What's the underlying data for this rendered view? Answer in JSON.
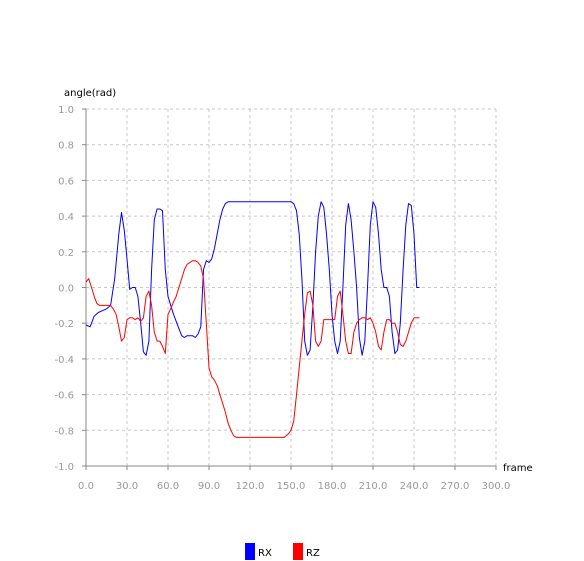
{
  "chart_data": {
    "type": "line",
    "xlabel": "frame",
    "ylabel": "angle(rad)",
    "xlim": [
      0,
      300
    ],
    "ylim": [
      -1.0,
      1.0
    ],
    "x_ticks": [
      "0.0",
      "30.0",
      "60.0",
      "90.0",
      "120.0",
      "150.0",
      "180.0",
      "210.0",
      "240.0",
      "270.0",
      "300.0"
    ],
    "y_ticks": [
      "-1.0",
      "-0.8",
      "-0.6",
      "-0.4",
      "-0.2",
      "0.0",
      "0.2",
      "0.4",
      "0.6",
      "0.8",
      "1.0"
    ],
    "grid": true,
    "legend_position": "bottom",
    "series": [
      {
        "name": "RX",
        "color": "#0000ff",
        "x": [
          0,
          3,
          6,
          9,
          12,
          15,
          18,
          21,
          24,
          26,
          28,
          30,
          32,
          34,
          36,
          38,
          40,
          42,
          44,
          46,
          48,
          50,
          52,
          54,
          56,
          58,
          60,
          62,
          64,
          66,
          68,
          70,
          72,
          74,
          76,
          78,
          80,
          82,
          84,
          86,
          88,
          90,
          92,
          94,
          96,
          98,
          100,
          102,
          104,
          106,
          108,
          110,
          112,
          114,
          116,
          118,
          120,
          125,
          130,
          135,
          140,
          145,
          148,
          150,
          152,
          154,
          156,
          158,
          160,
          162,
          164,
          166,
          168,
          170,
          172,
          174,
          176,
          178,
          180,
          182,
          184,
          186,
          188,
          190,
          192,
          194,
          196,
          198,
          200,
          202,
          204,
          206,
          208,
          210,
          212,
          214,
          216,
          218,
          220,
          222,
          224,
          226,
          228,
          230,
          232,
          234,
          236,
          238,
          240,
          242,
          244
        ],
        "y": [
          -0.21,
          -0.22,
          -0.16,
          -0.14,
          -0.13,
          -0.12,
          -0.1,
          0.05,
          0.3,
          0.42,
          0.32,
          0.16,
          -0.01,
          0.0,
          0.0,
          -0.05,
          -0.2,
          -0.36,
          -0.38,
          -0.3,
          0.1,
          0.38,
          0.44,
          0.44,
          0.43,
          0.1,
          -0.05,
          -0.1,
          -0.15,
          -0.19,
          -0.23,
          -0.27,
          -0.28,
          -0.27,
          -0.27,
          -0.27,
          -0.28,
          -0.26,
          -0.22,
          0.1,
          0.15,
          0.14,
          0.16,
          0.22,
          0.3,
          0.38,
          0.44,
          0.47,
          0.48,
          0.48,
          0.48,
          0.48,
          0.48,
          0.48,
          0.48,
          0.48,
          0.48,
          0.48,
          0.48,
          0.48,
          0.48,
          0.48,
          0.48,
          0.48,
          0.47,
          0.43,
          0.3,
          0.05,
          -0.3,
          -0.38,
          -0.35,
          -0.1,
          0.2,
          0.4,
          0.48,
          0.45,
          0.3,
          0.1,
          -0.15,
          -0.3,
          -0.37,
          -0.3,
          0.0,
          0.35,
          0.47,
          0.38,
          0.2,
          0.0,
          -0.28,
          -0.38,
          -0.3,
          0.0,
          0.35,
          0.48,
          0.45,
          0.3,
          0.1,
          0.0,
          0.0,
          -0.05,
          -0.25,
          -0.37,
          -0.35,
          -0.2,
          0.1,
          0.35,
          0.47,
          0.46,
          0.3,
          0.0,
          0.0
        ]
      },
      {
        "name": "RZ",
        "color": "#ff0000",
        "x": [
          0,
          2,
          4,
          6,
          8,
          10,
          12,
          14,
          16,
          18,
          20,
          22,
          24,
          26,
          28,
          30,
          32,
          34,
          36,
          38,
          40,
          42,
          44,
          46,
          48,
          50,
          52,
          54,
          56,
          58,
          60,
          62,
          64,
          66,
          68,
          70,
          72,
          74,
          76,
          78,
          80,
          82,
          84,
          86,
          88,
          90,
          92,
          94,
          96,
          98,
          100,
          102,
          104,
          106,
          108,
          110,
          112,
          114,
          116,
          118,
          120,
          125,
          130,
          135,
          140,
          145,
          148,
          150,
          152,
          154,
          156,
          158,
          160,
          162,
          164,
          166,
          168,
          170,
          172,
          174,
          176,
          178,
          180,
          182,
          184,
          186,
          188,
          190,
          192,
          194,
          196,
          198,
          200,
          202,
          204,
          206,
          208,
          210,
          212,
          214,
          216,
          218,
          220,
          222,
          224,
          226,
          228,
          230,
          232,
          234,
          236,
          238,
          240,
          242,
          244
        ],
        "y": [
          0.03,
          0.05,
          0.0,
          -0.05,
          -0.09,
          -0.1,
          -0.1,
          -0.1,
          -0.1,
          -0.1,
          -0.12,
          -0.15,
          -0.22,
          -0.3,
          -0.28,
          -0.18,
          -0.17,
          -0.17,
          -0.18,
          -0.17,
          -0.19,
          -0.17,
          -0.05,
          -0.02,
          -0.1,
          -0.25,
          -0.3,
          -0.3,
          -0.33,
          -0.37,
          -0.15,
          -0.12,
          -0.08,
          -0.05,
          0.0,
          0.05,
          0.1,
          0.13,
          0.14,
          0.15,
          0.15,
          0.14,
          0.12,
          0.05,
          -0.2,
          -0.45,
          -0.5,
          -0.52,
          -0.55,
          -0.6,
          -0.65,
          -0.7,
          -0.76,
          -0.8,
          -0.83,
          -0.84,
          -0.84,
          -0.84,
          -0.84,
          -0.84,
          -0.84,
          -0.84,
          -0.84,
          -0.84,
          -0.84,
          -0.84,
          -0.82,
          -0.8,
          -0.75,
          -0.6,
          -0.45,
          -0.3,
          -0.15,
          -0.03,
          -0.02,
          -0.1,
          -0.3,
          -0.33,
          -0.3,
          -0.18,
          -0.18,
          -0.18,
          -0.18,
          -0.18,
          -0.05,
          -0.02,
          -0.15,
          -0.3,
          -0.37,
          -0.37,
          -0.25,
          -0.2,
          -0.18,
          -0.17,
          -0.17,
          -0.18,
          -0.17,
          -0.2,
          -0.25,
          -0.33,
          -0.35,
          -0.25,
          -0.18,
          -0.18,
          -0.2,
          -0.2,
          -0.25,
          -0.32,
          -0.33,
          -0.3,
          -0.25,
          -0.2,
          -0.17,
          -0.17,
          -0.17
        ]
      }
    ]
  }
}
